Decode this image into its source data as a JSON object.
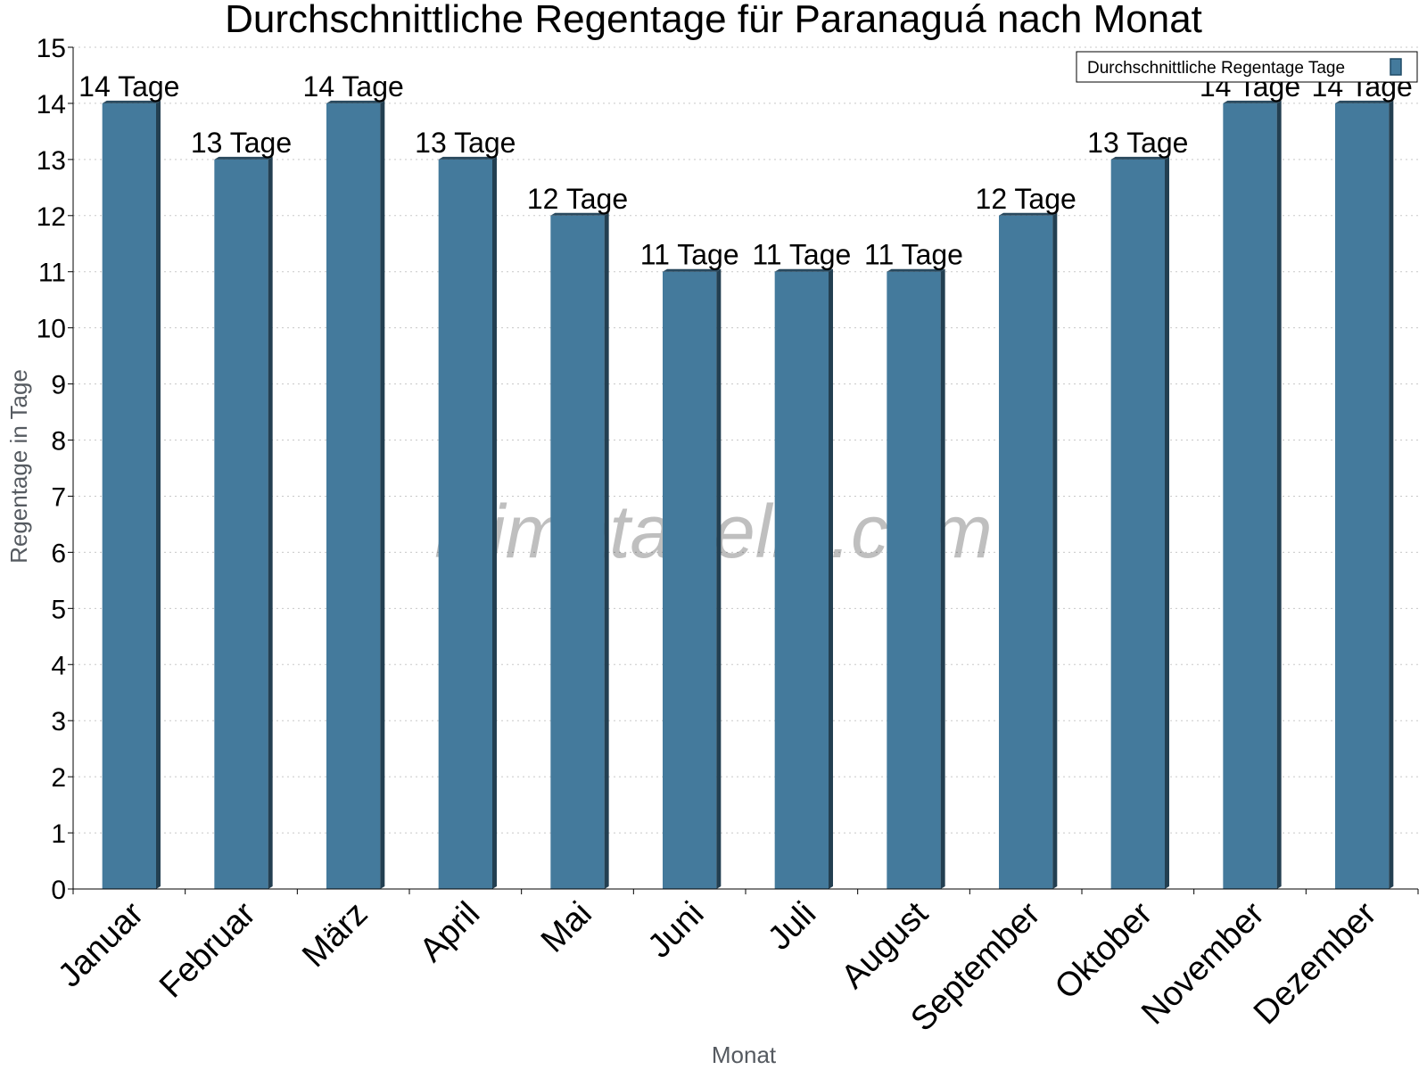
{
  "chart_data": {
    "type": "bar",
    "title": "Durchschnittliche Regentage für Paranaguá nach Monat",
    "xlabel": "Monat",
    "ylabel": "Regentage in Tage",
    "categories": [
      "Januar",
      "Februar",
      "März",
      "April",
      "Mai",
      "Juni",
      "Juli",
      "August",
      "September",
      "Oktober",
      "November",
      "Dezember"
    ],
    "series": [
      {
        "name": "Durchschnittliche Regentage Tage",
        "values": [
          14,
          13,
          14,
          13,
          12,
          11,
          11,
          11,
          12,
          13,
          14,
          14
        ],
        "color": "#447a9c",
        "labels": [
          "14 Tage",
          "13 Tage",
          "14 Tage",
          "13 Tage",
          "12 Tage",
          "11 Tage",
          "11 Tage",
          "11 Tage",
          "12 Tage",
          "13 Tage",
          "14 Tage",
          "14 Tage"
        ]
      }
    ],
    "ylim": [
      0,
      15
    ],
    "yticks": [
      0,
      1,
      2,
      3,
      4,
      5,
      6,
      7,
      8,
      9,
      10,
      11,
      12,
      13,
      14,
      15
    ],
    "grid": true,
    "legend_position": "top-right",
    "watermark": "klimatabelle.com"
  }
}
